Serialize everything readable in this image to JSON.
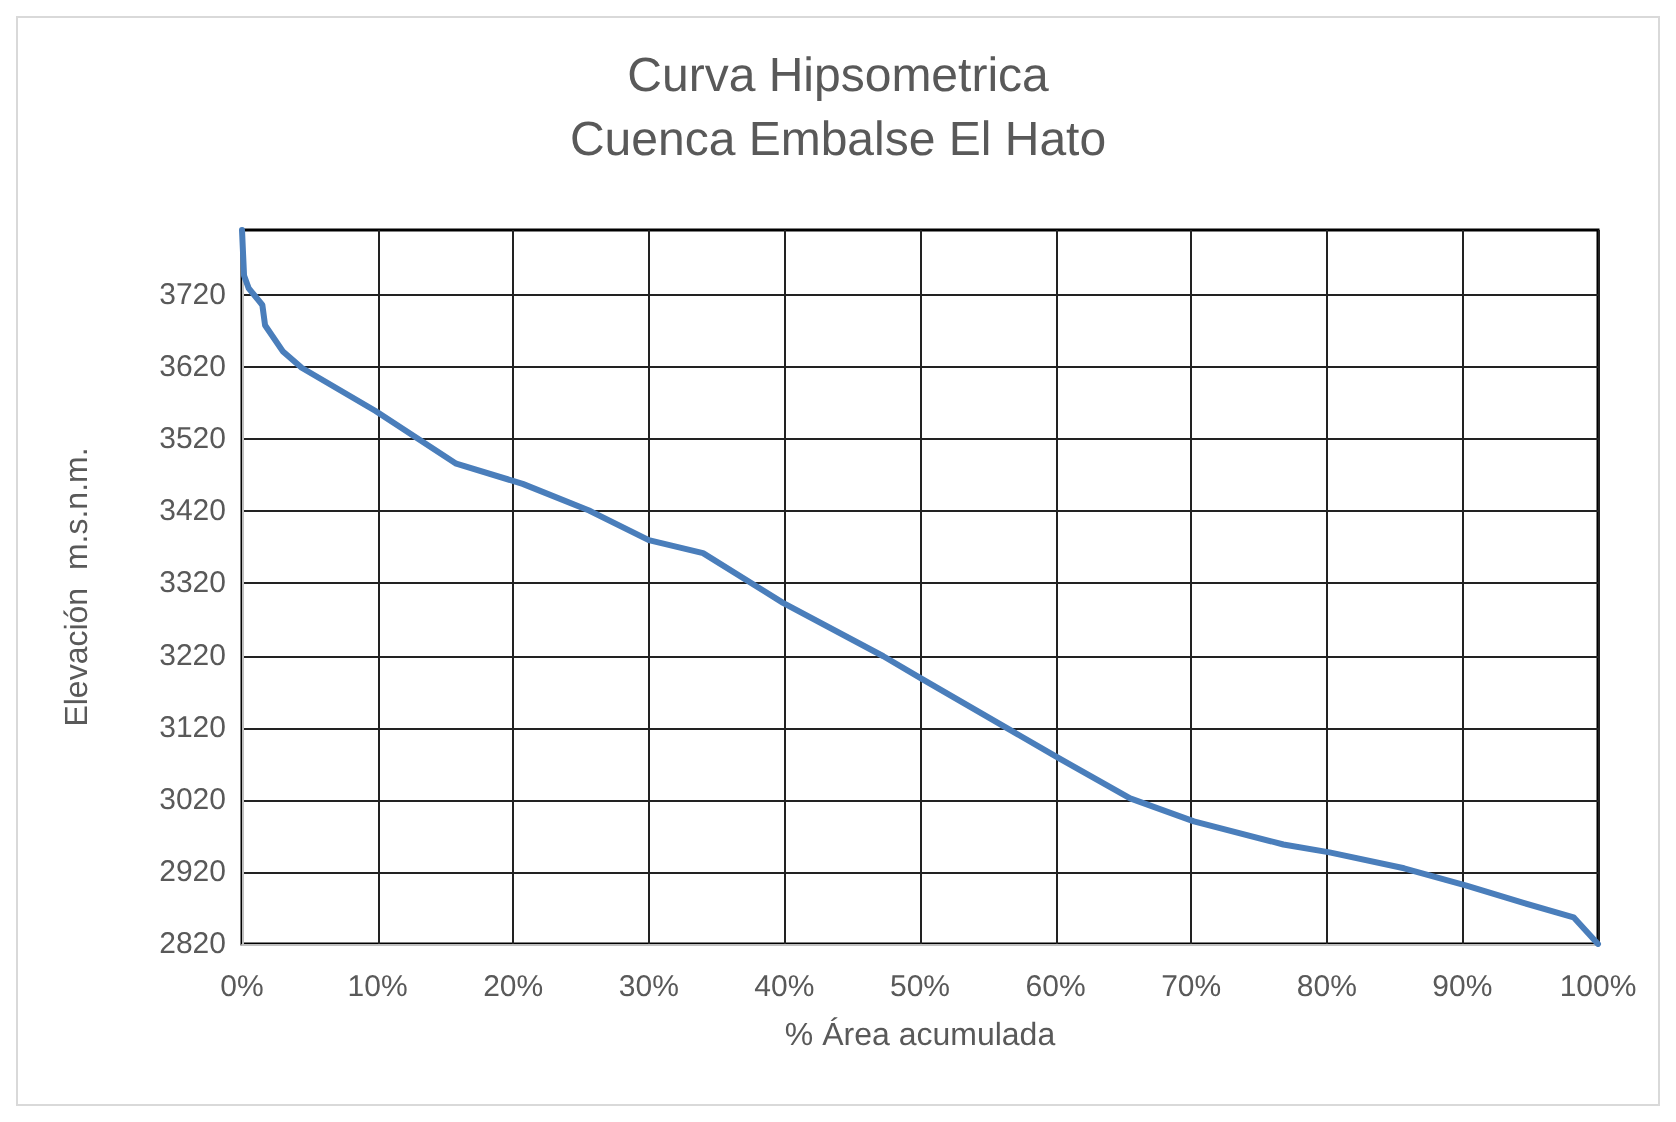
{
  "chart_data": {
    "type": "line",
    "title": "Curva Hipsometrica\nCuenca Embalse El Hato",
    "xlabel": "% Área acumulada",
    "ylabel": "Elevación  m.s.n.m.",
    "x": [
      0,
      0.15,
      0.5,
      1.5,
      1.7,
      3,
      4.4,
      9.85,
      15.8,
      20.7,
      25.6,
      30,
      34,
      39.9,
      47.3,
      50.2,
      60.3,
      65.5,
      70.2,
      76.8,
      80.2,
      85.7,
      90.3,
      94.5,
      98.2,
      100
    ],
    "series": [
      {
        "color": "#4a7ebb",
        "values": [
          3810,
          3747,
          3729,
          3706,
          3678,
          3642,
          3619,
          3559,
          3486,
          3458,
          3421,
          3380,
          3362,
          3293,
          3219,
          3187,
          3077,
          3022,
          2990,
          2958,
          2947,
          2925,
          2901,
          2877,
          2857,
          2820
        ]
      }
    ],
    "xlim": [
      0,
      100
    ],
    "xticks": [
      {
        "value": 0,
        "label": "0%"
      },
      {
        "value": 10,
        "label": "10%"
      },
      {
        "value": 20,
        "label": "20%"
      },
      {
        "value": 30,
        "label": "30%"
      },
      {
        "value": 40,
        "label": "40%"
      },
      {
        "value": 50,
        "label": "50%"
      },
      {
        "value": 60,
        "label": "60%"
      },
      {
        "value": 70,
        "label": "70%"
      },
      {
        "value": 80,
        "label": "80%"
      },
      {
        "value": 90,
        "label": "90%"
      },
      {
        "value": 100,
        "label": "100%"
      }
    ],
    "ylim": [
      2820,
      3810
    ],
    "yticks": [
      2820,
      2920,
      3020,
      3120,
      3220,
      3320,
      3420,
      3520,
      3620,
      3720
    ],
    "grid": true,
    "marker": "none",
    "line_style": "solid"
  }
}
